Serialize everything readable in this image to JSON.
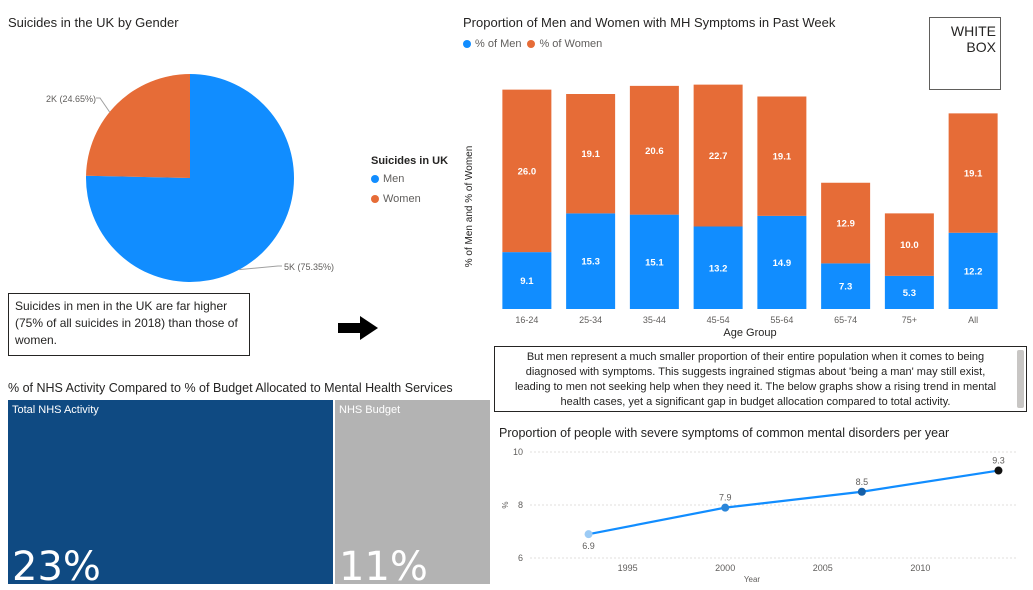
{
  "colors": {
    "men": "#118dff",
    "women": "#e66c37",
    "nhs_total": "#0f4a82",
    "nhs_budget": "#b3b3b3",
    "line": "#118dff"
  },
  "pie": {
    "title": "Suicides in the UK by Gender",
    "legend_title": "Suicides in UK",
    "legend": [
      "Men",
      "Women"
    ]
  },
  "note_left": "Suicides in men in the UK are far higher (75% of all suicides in 2018) than those of women.",
  "arrow_icon": "right-arrow-icon",
  "bar": {
    "title": "Proportion of Men and Women with MH Symptoms in Past Week",
    "legend": [
      "% of Men",
      "% of Women"
    ]
  },
  "logo": {
    "line1": "WHITE",
    "line2": "BOX"
  },
  "note_right": "But men represent a much smaller proportion of their entire population when it comes to being diagnosed with symptoms. This suggests ingrained stigmas about 'being a man' may still exist, leading to men not seeking help when they need it. The below graphs show a rising trend in mental health cases, yet a significant gap in budget allocation compared to total activity.",
  "treemap": {
    "title": "% of NHS Activity Compared to % of Budget Allocated to Mental Health Services",
    "total_label": "Total NHS Activity",
    "total_value": "23%",
    "budget_label": "NHS Budget",
    "budget_value": "11%"
  },
  "line": {
    "title": "Proportion of people with severe symptoms of common mental disorders per year"
  },
  "chart_data": [
    {
      "type": "pie",
      "title": "Suicides in the UK by Gender",
      "legend_title": "Suicides in UK",
      "categories": [
        "Men",
        "Women"
      ],
      "values": [
        75.35,
        24.65
      ],
      "data_labels": [
        "5K (75.35%)",
        "2K (24.65%)"
      ]
    },
    {
      "type": "bar",
      "stacked": true,
      "title": "Proportion of Men and Women with MH Symptoms in Past Week",
      "xlabel": "Age Group",
      "ylabel": "% of Men and % of Women",
      "categories": [
        "16-24",
        "25-34",
        "35-44",
        "45-54",
        "55-64",
        "65-74",
        "75+",
        "All"
      ],
      "series": [
        {
          "name": "% of Men",
          "values": [
            9.1,
            15.3,
            15.1,
            13.2,
            14.9,
            7.3,
            5.3,
            12.2
          ]
        },
        {
          "name": "% of Women",
          "values": [
            26.0,
            19.1,
            20.6,
            22.7,
            19.1,
            12.9,
            10.0,
            19.1
          ]
        }
      ],
      "ylim": [
        0,
        36
      ],
      "legend": "top-left"
    },
    {
      "type": "bar",
      "title": "% of NHS Activity Compared to % of Budget Allocated to Mental Health Services",
      "categories": [
        "Total NHS Activity",
        "NHS Budget"
      ],
      "values": [
        23,
        11
      ]
    },
    {
      "type": "line",
      "title": "Proportion of people with severe symptoms of common mental disorders per year",
      "xlabel": "Year",
      "ylabel": "%",
      "x": [
        1993,
        2000,
        2007,
        2014
      ],
      "y": [
        6.9,
        7.9,
        8.5,
        9.3
      ],
      "xticks": [
        "1995",
        "2000",
        "2005",
        "2010"
      ],
      "yticks": [
        "6",
        "8",
        "10"
      ],
      "xlim": [
        1990,
        2015
      ],
      "ylim": [
        6,
        10
      ],
      "data_labels": [
        "6.9",
        "7.9",
        "8.5",
        "9.3"
      ]
    }
  ]
}
